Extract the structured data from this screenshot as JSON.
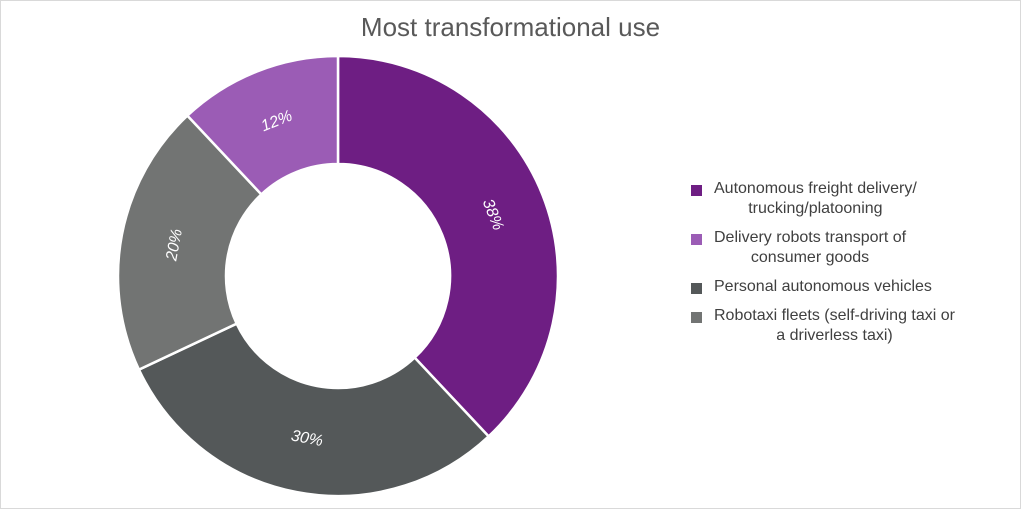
{
  "chart_data": {
    "type": "pie",
    "variant": "donut",
    "title": "Most transformational use",
    "categories": [
      "Autonomous freight delivery/\ntrucking/platooning",
      "Delivery robots transport of\nconsumer goods",
      "Personal autonomous vehicles",
      "Robotaxi fleets (self-driving taxi or\na driverless taxi)"
    ],
    "values": [
      38,
      12,
      30,
      20
    ],
    "value_labels": [
      "38%",
      "12%",
      "30%",
      "20%"
    ],
    "colors": [
      "#6e1e83",
      "#9b5cb5",
      "#545859",
      "#727473"
    ],
    "slice_order": [
      0,
      2,
      3,
      1
    ],
    "legend_position": "right"
  }
}
